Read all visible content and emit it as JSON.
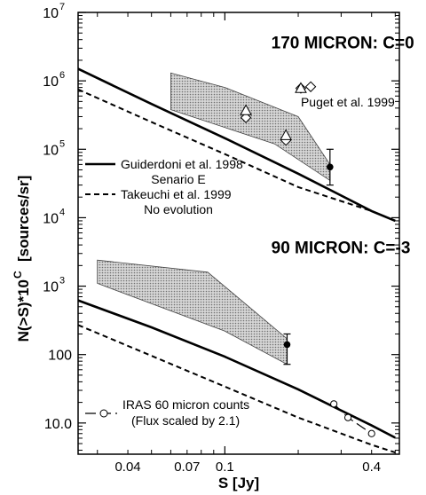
{
  "chart_data": {
    "type": "line",
    "xlabel": "S  [Jy]",
    "ylabel": "N(>S)*10",
    "ylabel_superscript": "C",
    "ylabel_units": "[sources/sr]",
    "x_scale": "log",
    "y_scale": "log",
    "xlim": [
      0.025,
      0.52
    ],
    "ylim": [
      3.5,
      10000000
    ],
    "x_tick_labels": [
      {
        "x": 0.04,
        "label": "0.04"
      },
      {
        "x": 0.07,
        "label": "0.07"
      },
      {
        "x": 0.1,
        "label": "0.1"
      },
      {
        "x": 0.4,
        "label": "0.4"
      }
    ],
    "y_tick_labels": [
      {
        "y": 10000000,
        "base": "10",
        "exp": "7"
      },
      {
        "y": 1000000,
        "base": "10",
        "exp": "6"
      },
      {
        "y": 100000,
        "base": "10",
        "exp": "5"
      },
      {
        "y": 10000,
        "base": "10",
        "exp": "4"
      },
      {
        "y": 1000,
        "base": "10",
        "exp": "3"
      },
      {
        "y": 100,
        "base": "100",
        "exp": ""
      },
      {
        "y": 10,
        "base": "10.0",
        "exp": ""
      }
    ],
    "panel_titles": [
      {
        "text": "170 MICRON: C=0",
        "x": 0.155,
        "y": 3000000
      },
      {
        "text": "90 MICRON: C=-3",
        "x": 0.155,
        "y": 3000
      }
    ],
    "annotations": [
      {
        "text": "Puget et al. 1999",
        "x": 0.205,
        "y": 420000
      }
    ],
    "series": [
      {
        "name": "Guiderdoni et al. 1998",
        "style": "solid",
        "group": "170",
        "x": [
          0.025,
          0.05,
          0.1,
          0.2,
          0.4,
          0.5
        ],
        "y": [
          1500000,
          460000,
          145000,
          44000,
          12500,
          9000
        ]
      },
      {
        "name": "Takeuchi et al. 1999",
        "style": "dashed",
        "group": "170",
        "x": [
          0.025,
          0.05,
          0.1,
          0.2,
          0.4,
          0.5
        ],
        "y": [
          750000,
          250000,
          85000,
          28000,
          12500,
          9000
        ]
      },
      {
        "name": "Guiderdoni et al. 1998",
        "style": "solid",
        "group": "90",
        "x": [
          0.025,
          0.05,
          0.1,
          0.2,
          0.4,
          0.5
        ],
        "y": [
          620,
          250,
          93,
          31,
          9.2,
          6.1
        ]
      },
      {
        "name": "Takeuchi et al. 1999",
        "style": "dashed",
        "group": "90",
        "x": [
          0.025,
          0.05,
          0.1,
          0.2,
          0.4,
          0.5
        ],
        "y": [
          270,
          96,
          34,
          12,
          4.8,
          3.7
        ]
      },
      {
        "name": "IRAS 60 micron counts",
        "style": "longdash",
        "marker": "open-circle",
        "group": "90",
        "x": [
          0.28,
          0.32,
          0.4
        ],
        "y": [
          19,
          12,
          7
        ]
      }
    ],
    "points": [
      {
        "group": "170",
        "marker": "open-diamond",
        "x": 0.205,
        "y": 780000
      },
      {
        "group": "170",
        "marker": "open-diamond",
        "x": 0.225,
        "y": 820000
      },
      {
        "group": "170",
        "marker": "open-triangle",
        "x": 0.205,
        "y": 780000
      },
      {
        "group": "170",
        "marker": "open-diamond",
        "x": 0.122,
        "y": 290000
      },
      {
        "group": "170",
        "marker": "open-triangle",
        "x": 0.122,
        "y": 370000
      },
      {
        "group": "170",
        "marker": "open-diamond",
        "x": 0.178,
        "y": 135000
      },
      {
        "group": "170",
        "marker": "open-triangle",
        "x": 0.178,
        "y": 160000
      },
      {
        "group": "170",
        "marker": "filled-circle",
        "x": 0.27,
        "y": 55000,
        "err_low": 30000,
        "err_high": 100000
      },
      {
        "group": "90",
        "marker": "filled-circle",
        "x": 0.18,
        "y": 140,
        "err_low": 72,
        "err_high": 200
      }
    ],
    "shaded_regions": [
      {
        "group": "170",
        "x": [
          0.06,
          0.06,
          0.16,
          0.27,
          0.27,
          0.2,
          0.1,
          0.06
        ],
        "y": [
          1300000,
          380000,
          120000,
          35000,
          60000,
          300000,
          800000,
          1300000
        ]
      },
      {
        "group": "90",
        "x": [
          0.03,
          0.03,
          0.1,
          0.18,
          0.18,
          0.085,
          0.03
        ],
        "y": [
          2400,
          1100,
          220,
          72,
          170,
          1600,
          2400
        ]
      }
    ],
    "legend": {
      "placement": "left-middle",
      "entries": [
        {
          "label": "Guiderdoni et al. 1998",
          "sublabel": "Senario E",
          "style": "solid"
        },
        {
          "label": "Takeuchi et al. 1999",
          "sublabel": "No evolution",
          "style": "dashed"
        }
      ]
    },
    "legend_iras": {
      "placement": "bottom-left",
      "label": "IRAS 60 micron counts",
      "sublabel": "(Flux scaled by 2.1)",
      "style": "longdash",
      "marker": "open-circle"
    }
  }
}
